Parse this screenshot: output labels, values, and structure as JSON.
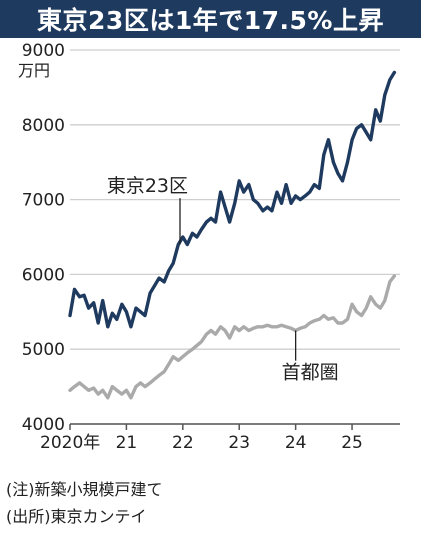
{
  "chart_data": {
    "type": "line",
    "title": "東京23区は1年で17.5%上昇",
    "unit": "万円",
    "ylim": [
      4000,
      9000
    ],
    "yticks": [
      4000,
      5000,
      6000,
      7000,
      8000,
      9000
    ],
    "xlim": [
      2020.0,
      2025.85
    ],
    "xticks": [
      {
        "value": 2020.0,
        "label": "2020年"
      },
      {
        "value": 2021.0,
        "label": "21"
      },
      {
        "value": 2022.0,
        "label": "22"
      },
      {
        "value": 2023.0,
        "label": "23"
      },
      {
        "value": 2024.0,
        "label": "24"
      },
      {
        "value": 2025.0,
        "label": "25"
      }
    ],
    "grid": "horizontal",
    "series": [
      {
        "name": "東京23区",
        "color": "#1f3a5f",
        "x": [
          2020.0,
          2020.08,
          2020.17,
          2020.25,
          2020.33,
          2020.42,
          2020.5,
          2020.58,
          2020.67,
          2020.75,
          2020.83,
          2020.92,
          2021.0,
          2021.08,
          2021.17,
          2021.25,
          2021.33,
          2021.42,
          2021.5,
          2021.58,
          2021.67,
          2021.75,
          2021.83,
          2021.92,
          2022.0,
          2022.08,
          2022.17,
          2022.25,
          2022.33,
          2022.42,
          2022.5,
          2022.58,
          2022.67,
          2022.75,
          2022.83,
          2022.92,
          2023.0,
          2023.08,
          2023.17,
          2023.25,
          2023.33,
          2023.42,
          2023.5,
          2023.58,
          2023.67,
          2023.75,
          2023.83,
          2023.92,
          2024.0,
          2024.08,
          2024.17,
          2024.25,
          2024.33,
          2024.42,
          2024.5,
          2024.58,
          2024.67,
          2024.75,
          2024.83,
          2024.92,
          2025.0,
          2025.08,
          2025.17,
          2025.25,
          2025.33,
          2025.42,
          2025.5,
          2025.58,
          2025.67,
          2025.75
        ],
        "values": [
          5450,
          5800,
          5700,
          5720,
          5550,
          5620,
          5350,
          5650,
          5300,
          5480,
          5400,
          5600,
          5500,
          5300,
          5550,
          5500,
          5450,
          5750,
          5850,
          5950,
          5900,
          6050,
          6150,
          6400,
          6500,
          6400,
          6550,
          6500,
          6600,
          6700,
          6750,
          6700,
          7100,
          6900,
          6700,
          6950,
          7250,
          7100,
          7200,
          7000,
          6950,
          6850,
          6900,
          6850,
          7100,
          6950,
          7200,
          6950,
          7050,
          7000,
          7050,
          7100,
          7200,
          7150,
          7600,
          7800,
          7500,
          7350,
          7250,
          7500,
          7800,
          7950,
          8000,
          7900,
          7800,
          8200,
          8050,
          8400,
          8600,
          8700
        ]
      },
      {
        "name": "首都圏",
        "color": "#aaaaaa",
        "x": [
          2020.0,
          2020.08,
          2020.17,
          2020.25,
          2020.33,
          2020.42,
          2020.5,
          2020.58,
          2020.67,
          2020.75,
          2020.83,
          2020.92,
          2021.0,
          2021.08,
          2021.17,
          2021.25,
          2021.33,
          2021.42,
          2021.5,
          2021.58,
          2021.67,
          2021.75,
          2021.83,
          2021.92,
          2022.0,
          2022.08,
          2022.17,
          2022.25,
          2022.33,
          2022.42,
          2022.5,
          2022.58,
          2022.67,
          2022.75,
          2022.83,
          2022.92,
          2023.0,
          2023.08,
          2023.17,
          2023.25,
          2023.33,
          2023.42,
          2023.5,
          2023.58,
          2023.67,
          2023.75,
          2023.83,
          2023.92,
          2024.0,
          2024.08,
          2024.17,
          2024.25,
          2024.33,
          2024.42,
          2024.5,
          2024.58,
          2024.67,
          2024.75,
          2024.83,
          2024.92,
          2025.0,
          2025.08,
          2025.17,
          2025.25,
          2025.33,
          2025.42,
          2025.5,
          2025.58,
          2025.67,
          2025.75
        ],
        "values": [
          4450,
          4500,
          4550,
          4500,
          4450,
          4480,
          4400,
          4450,
          4350,
          4500,
          4450,
          4400,
          4450,
          4350,
          4500,
          4550,
          4500,
          4550,
          4600,
          4650,
          4700,
          4800,
          4900,
          4850,
          4900,
          4950,
          5000,
          5050,
          5100,
          5200,
          5250,
          5200,
          5300,
          5250,
          5150,
          5300,
          5250,
          5300,
          5250,
          5280,
          5300,
          5300,
          5320,
          5300,
          5300,
          5320,
          5300,
          5280,
          5250,
          5280,
          5300,
          5350,
          5380,
          5400,
          5450,
          5400,
          5420,
          5350,
          5350,
          5400,
          5600,
          5500,
          5450,
          5550,
          5700,
          5600,
          5550,
          5650,
          5900,
          5980
        ]
      }
    ],
    "series_labels": [
      {
        "series": 0,
        "text": "東京23区",
        "at_x": 2021.95,
        "at_y": 7100,
        "pointer": true
      },
      {
        "series": 1,
        "text": "首都圏",
        "at_x": 2024.0,
        "at_y": 4900,
        "pointer": true
      }
    ]
  },
  "notes": {
    "note1": "(注)新築小規模戸建て",
    "note2": "(出所)東京カンテイ"
  }
}
